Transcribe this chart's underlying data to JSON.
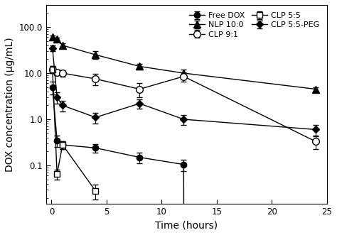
{
  "title": "",
  "xlabel": "Time (hours)",
  "ylabel": "DOX concentration (μg/mL)",
  "xlim": [
    0,
    25
  ],
  "ylim_log": [
    0.01,
    200
  ],
  "yticks": [
    0.1,
    1.0,
    10.0,
    100.0
  ],
  "yticklabels": [
    "0.1",
    "1.0",
    "10.0",
    "100.0"
  ],
  "xticks": [
    0,
    5,
    10,
    15,
    20,
    25
  ],
  "series": {
    "Free DOX": {
      "x": [
        0.083,
        0.5,
        1.0,
        4.0,
        8.0,
        12.0,
        24.0
      ],
      "y": [
        5.0,
        0.35,
        0.28,
        0.24,
        0.15,
        0.105,
        0.0
      ],
      "yerr": [
        1.5,
        0.1,
        0.05,
        0.05,
        0.04,
        0.03,
        0.0
      ],
      "marker": "o",
      "fillstyle": "full",
      "color": "black",
      "linestyle": "-",
      "label": "Free DOX"
    },
    "NLP 10:0": {
      "x": [
        0.083,
        0.5,
        1.0,
        4.0,
        8.0,
        12.0,
        24.0
      ],
      "y": [
        60.0,
        55.0,
        40.0,
        25.0,
        14.0,
        10.0,
        4.5
      ],
      "yerr": [
        5.0,
        4.0,
        5.0,
        5.0,
        2.0,
        2.0,
        0.5
      ],
      "marker": "^",
      "fillstyle": "full",
      "color": "black",
      "linestyle": "-",
      "label": "NLP 10:0"
    },
    "CLP 9:1": {
      "x": [
        0.083,
        0.5,
        1.0,
        4.0,
        8.0,
        12.0,
        24.0
      ],
      "y": [
        12.0,
        10.5,
        10.0,
        7.5,
        4.5,
        8.5,
        0.33
      ],
      "yerr": [
        2.0,
        1.5,
        1.5,
        2.0,
        1.5,
        2.0,
        0.1
      ],
      "marker": "o",
      "fillstyle": "none",
      "color": "black",
      "linestyle": "-",
      "label": "CLP 9:1"
    },
    "CLP 5:5": {
      "x": [
        0.083,
        0.5,
        1.0,
        4.0
      ],
      "y": [
        12.0,
        0.065,
        0.28,
        0.028
      ],
      "yerr": [
        2.0,
        0.015,
        0.05,
        0.01
      ],
      "marker": "s",
      "fillstyle": "none",
      "color": "black",
      "linestyle": "-",
      "label": "CLP 5:5"
    },
    "CLP 5:5-PEG": {
      "x": [
        0.083,
        0.5,
        1.0,
        4.0,
        8.0,
        12.0,
        24.0
      ],
      "y": [
        35.0,
        3.0,
        2.0,
        1.1,
        2.2,
        1.0,
        0.6
      ],
      "yerr": [
        5.0,
        0.8,
        0.5,
        0.3,
        0.5,
        0.25,
        0.15
      ],
      "marker": "D",
      "fillstyle": "full",
      "color": "black",
      "linestyle": "-",
      "label": "CLP 5:5-PEG"
    }
  },
  "background_color": "#ffffff",
  "legend_fontsize": 8,
  "axis_fontsize": 10,
  "tick_fontsize": 8.5
}
